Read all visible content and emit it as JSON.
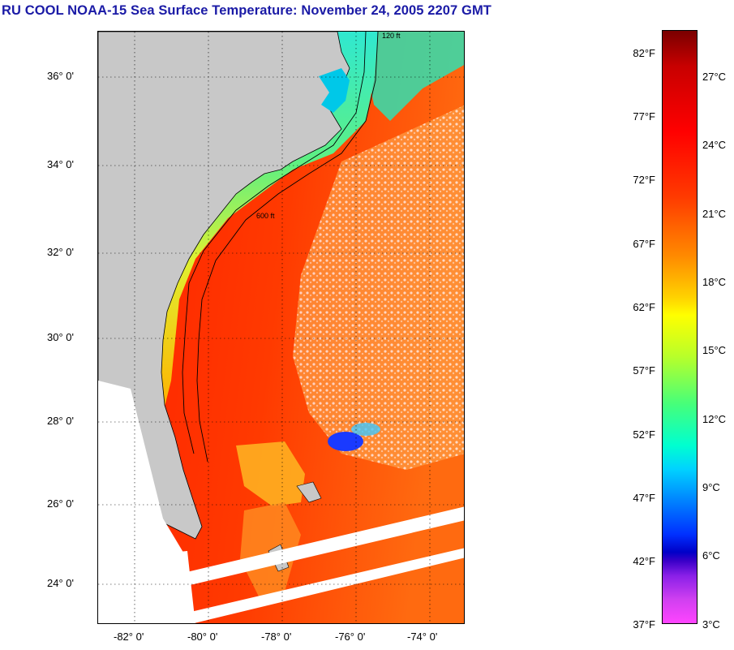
{
  "title": "RU COOL  NOAA-15  Sea Surface Temperature:  November 24, 2005 2207 GMT",
  "map": {
    "lat_labels": [
      "36° 0'",
      "34° 0'",
      "32° 0'",
      "30° 0'",
      "28° 0'",
      "26° 0'",
      "24° 0'"
    ],
    "lon_labels": [
      "-82° 0'",
      "-80° 0'",
      "-78° 0'",
      "-76° 0'",
      "-74° 0'"
    ],
    "contour_labels": [
      "120 ft",
      "600 ft"
    ],
    "colors": {
      "land": "#c8c8c8",
      "cloud": "#ffffff",
      "warm_ocean": "#ff2a00",
      "mid_ocean": "#ff7a10",
      "cool_shelf": "#ffd800",
      "cold_shelf": "#38e0a0",
      "sound": "#00c8e8"
    }
  },
  "colorbar": {
    "fahrenheit": [
      "82°F",
      "77°F",
      "72°F",
      "67°F",
      "62°F",
      "57°F",
      "52°F",
      "47°F",
      "42°F",
      "37°F"
    ],
    "celsius": [
      "27°C",
      "24°C",
      "21°C",
      "18°C",
      "15°C",
      "12°C",
      "9°C",
      "6°C",
      "3°C"
    ]
  }
}
